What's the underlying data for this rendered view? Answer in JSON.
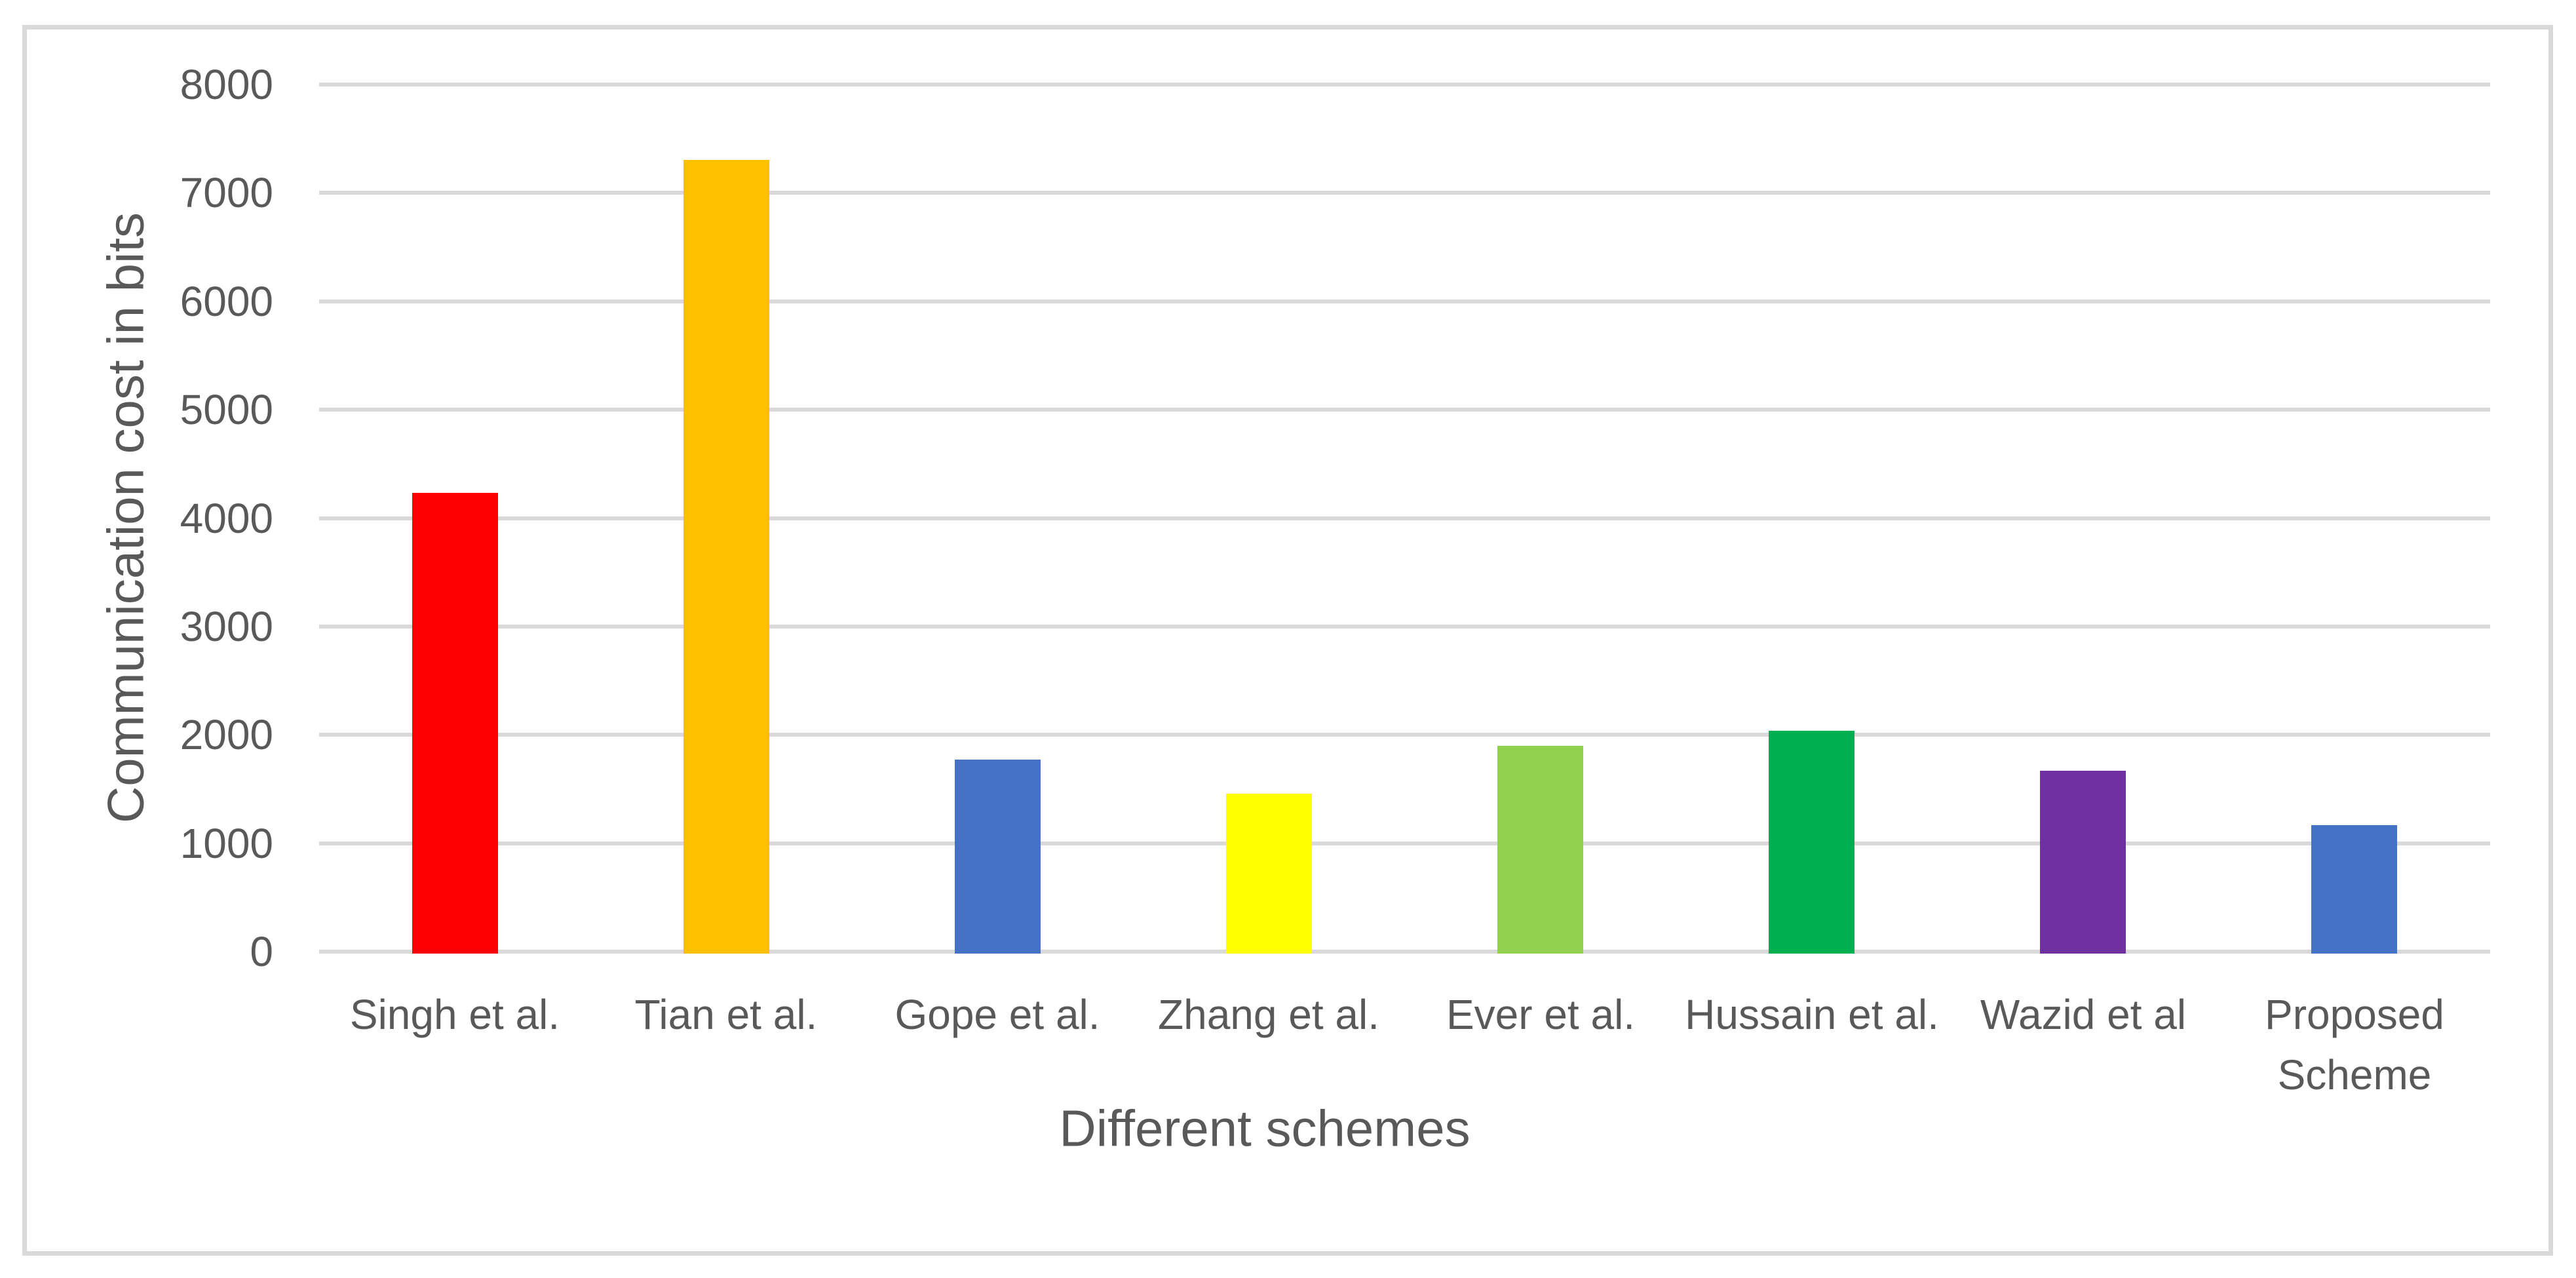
{
  "chart_data": {
    "type": "bar",
    "title": "",
    "categories": [
      "Singh et al.",
      "Tian et al.",
      "Gope et al.",
      "Zhang et al.",
      "Ever et al.",
      "Hussain et al.",
      "Wazid et al",
      "Proposed Scheme"
    ],
    "values": [
      4250,
      7325,
      1790,
      1475,
      1915,
      2055,
      1690,
      1185
    ],
    "bar_colors": [
      "#FF0000",
      "#FFC000",
      "#4472C4",
      "#FFFF00",
      "#92D050",
      "#00B050",
      "#7030A0",
      "#4472C4"
    ],
    "xlabel": "Different schemes",
    "ylabel": "Communication cost in bits",
    "ylim": [
      0,
      8000
    ],
    "ytick_labels": [
      "0",
      "1000",
      "2000",
      "3000",
      "4000",
      "5000",
      "6000",
      "7000",
      "8000"
    ],
    "ytick_values": [
      0,
      1000,
      2000,
      3000,
      4000,
      5000,
      6000,
      7000,
      8000
    ],
    "grid": "horizontal",
    "legend": "none"
  },
  "styles": {
    "background": "#FFFFFF",
    "border_color": "#D9D9D9",
    "grid_color": "#D9D9D9",
    "text_color": "#595959"
  }
}
